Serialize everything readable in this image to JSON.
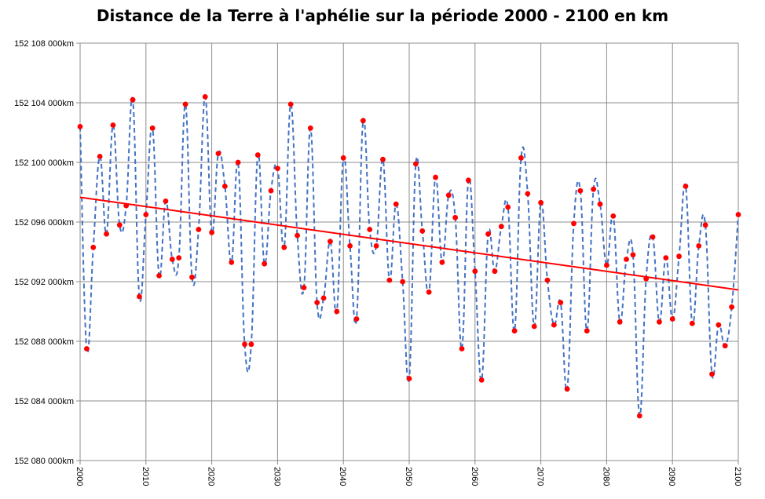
{
  "chart_data": {
    "type": "line",
    "title": "Distance de la Terre à l'aphélie sur la période 2000 - 2100 en km",
    "xlabel": "",
    "ylabel": "",
    "xlim": [
      2000,
      2100
    ],
    "ylim": [
      152080000,
      152108000
    ],
    "x_ticks": [
      "2000",
      "2010",
      "2020",
      "2030",
      "2040",
      "2050",
      "2060",
      "2070",
      "2080",
      "2090",
      "2100"
    ],
    "y_ticks": [
      "152 080 000km",
      "152 084 000km",
      "152 088 000km",
      "152 092 000km",
      "152 096 000km",
      "152 100 000km",
      "152 104 000km",
      "152 108 000km"
    ],
    "grid": true,
    "series": [
      {
        "style": "dashed-line-with-markers",
        "line_color": "#4472C4",
        "marker_color": "#FF0000",
        "x": [
          2000,
          2001,
          2002,
          2003,
          2004,
          2005,
          2006,
          2007,
          2008,
          2009,
          2010,
          2011,
          2012,
          2013,
          2014,
          2015,
          2016,
          2017,
          2018,
          2019,
          2020,
          2021,
          2022,
          2023,
          2024,
          2025,
          2026,
          2027,
          2028,
          2029,
          2030,
          2031,
          2032,
          2033,
          2034,
          2035,
          2036,
          2037,
          2038,
          2039,
          2040,
          2041,
          2042,
          2043,
          2044,
          2045,
          2046,
          2047,
          2048,
          2049,
          2050,
          2051,
          2052,
          2053,
          2054,
          2055,
          2056,
          2057,
          2058,
          2059,
          2060,
          2061,
          2062,
          2063,
          2064,
          2065,
          2066,
          2067,
          2068,
          2069,
          2070,
          2071,
          2072,
          2073,
          2074,
          2075,
          2076,
          2077,
          2078,
          2079,
          2080,
          2081,
          2082,
          2083,
          2084,
          2085,
          2086,
          2087,
          2088,
          2089,
          2090,
          2091,
          2092,
          2093,
          2094,
          2095,
          2096,
          2097,
          2098,
          2099,
          2100
        ],
        "y": [
          152102400,
          152087500,
          152094300,
          152100400,
          152095200,
          152102500,
          152095800,
          152097100,
          152104200,
          152091000,
          152096500,
          152102300,
          152092400,
          152097400,
          152093500,
          152093600,
          152103900,
          152092300,
          152095500,
          152104400,
          152095300,
          152100600,
          152098400,
          152093300,
          152100000,
          152087800,
          152087800,
          152100500,
          152093200,
          152098100,
          152099600,
          152094300,
          152103900,
          152095100,
          152091600,
          152102300,
          152090600,
          152090900,
          152094700,
          152090000,
          152100300,
          152094400,
          152089500,
          152102800,
          152095500,
          152094400,
          152100200,
          152092100,
          152097200,
          152092000,
          152085500,
          152099900,
          152095400,
          152091300,
          152099000,
          152093300,
          152097800,
          152096300,
          152087500,
          152098800,
          152092700,
          152085400,
          152095200,
          152092700,
          152095700,
          152097000,
          152088700,
          152100300,
          152097900,
          152089000,
          152097300,
          152092100,
          152089100,
          152090600,
          152084800,
          152095900,
          152098100,
          152088700,
          152098200,
          152097200,
          152093100,
          152096400,
          152089300,
          152093500,
          152093800,
          152083000,
          152092200,
          152095000,
          152089300,
          152093600,
          152089500,
          152093700,
          152098400,
          152089200,
          152094400,
          152095800,
          152085800,
          152089100,
          152087700,
          152090300,
          152096500
        ]
      },
      {
        "style": "trendline",
        "line_color": "#FF0000",
        "x": [
          2000,
          2100
        ],
        "y": [
          152097660,
          152091450
        ]
      }
    ]
  }
}
